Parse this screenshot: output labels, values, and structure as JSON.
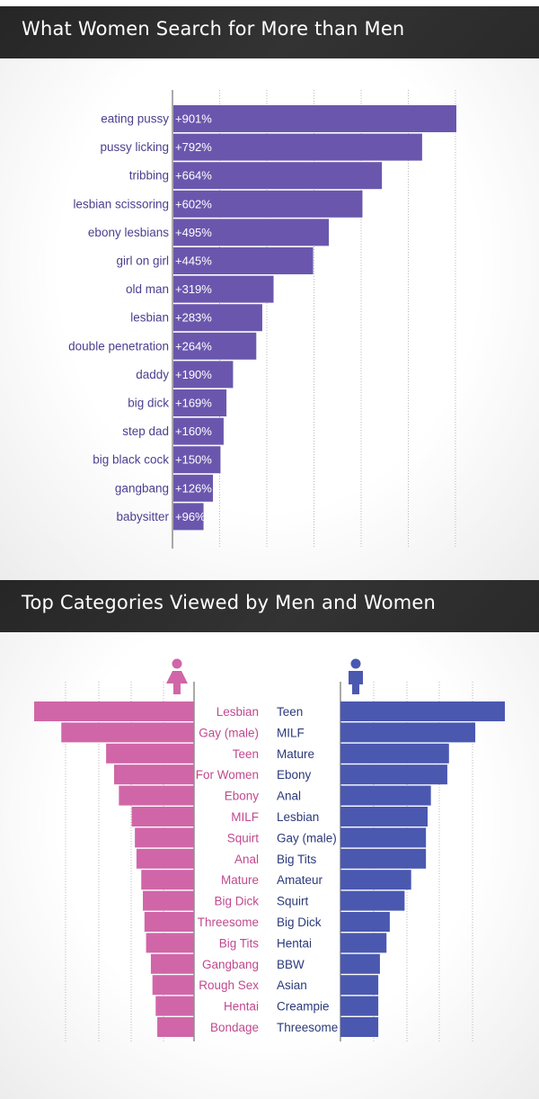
{
  "colors": {
    "banner_bg": "#2b2b2b",
    "purple_bar": "#6a57ad",
    "purple_text": "#4b3f8e",
    "pink_bar": "#d066a8",
    "pink_text": "#c0498e",
    "blue_bar": "#4a58b0",
    "blue_text": "#2b3a7a"
  },
  "section1": {
    "title": "What Women Search for More than Men"
  },
  "section2": {
    "title": "Top Categories Viewed by Men and Women",
    "female_icon": "female-figure-icon",
    "male_icon": "male-figure-icon"
  },
  "chart_data": [
    {
      "type": "bar",
      "orientation": "horizontal",
      "title": "What Women Search for More than Men",
      "categories": [
        "eating pussy",
        "pussy licking",
        "tribbing",
        "lesbian scissoring",
        "ebony lesbians",
        "girl on girl",
        "old man",
        "lesbian",
        "double penetration",
        "daddy",
        "big dick",
        "step dad",
        "big black cock",
        "gangbang",
        "babysitter"
      ],
      "values": [
        901,
        792,
        664,
        602,
        495,
        445,
        319,
        283,
        264,
        190,
        169,
        160,
        150,
        126,
        96
      ],
      "labels": [
        "+901%",
        "+792%",
        "+664%",
        "+602%",
        "+495%",
        "+445%",
        "+319%",
        "+283%",
        "+264%",
        "+190%",
        "+169%",
        "+160%",
        "+150%",
        "+126%",
        "+96%"
      ],
      "xlim": [
        0,
        901
      ],
      "grid": true
    },
    {
      "type": "bar",
      "orientation": "horizontal",
      "title": "Top Categories Viewed by Men and Women",
      "series": [
        {
          "categories": [
            "Lesbian",
            "Gay (male)",
            "Teen",
            "For Women",
            "Ebony",
            "MILF",
            "Squirt",
            "Anal",
            "Mature",
            "Big Dick",
            "Threesome",
            "Big Tits",
            "Gangbang",
            "Rough Sex",
            "Hentai",
            "Bondage"
          ],
          "values": [
            100,
            83,
            55,
            50,
            47,
            39,
            37,
            36,
            33,
            32,
            31,
            30,
            27,
            26,
            24,
            23
          ]
        },
        {
          "categories": [
            "Teen",
            "MILF",
            "Mature",
            "Ebony",
            "Anal",
            "Lesbian",
            "Gay (male)",
            "Big Tits",
            "Amateur",
            "Squirt",
            "Big Dick",
            "Hentai",
            "BBW",
            "Asian",
            "Creampie",
            "Threesome"
          ],
          "values": [
            100,
            82,
            66,
            65,
            55,
            53,
            52,
            52,
            43,
            39,
            30,
            28,
            24,
            23,
            23,
            23
          ]
        }
      ],
      "grid": true
    }
  ]
}
